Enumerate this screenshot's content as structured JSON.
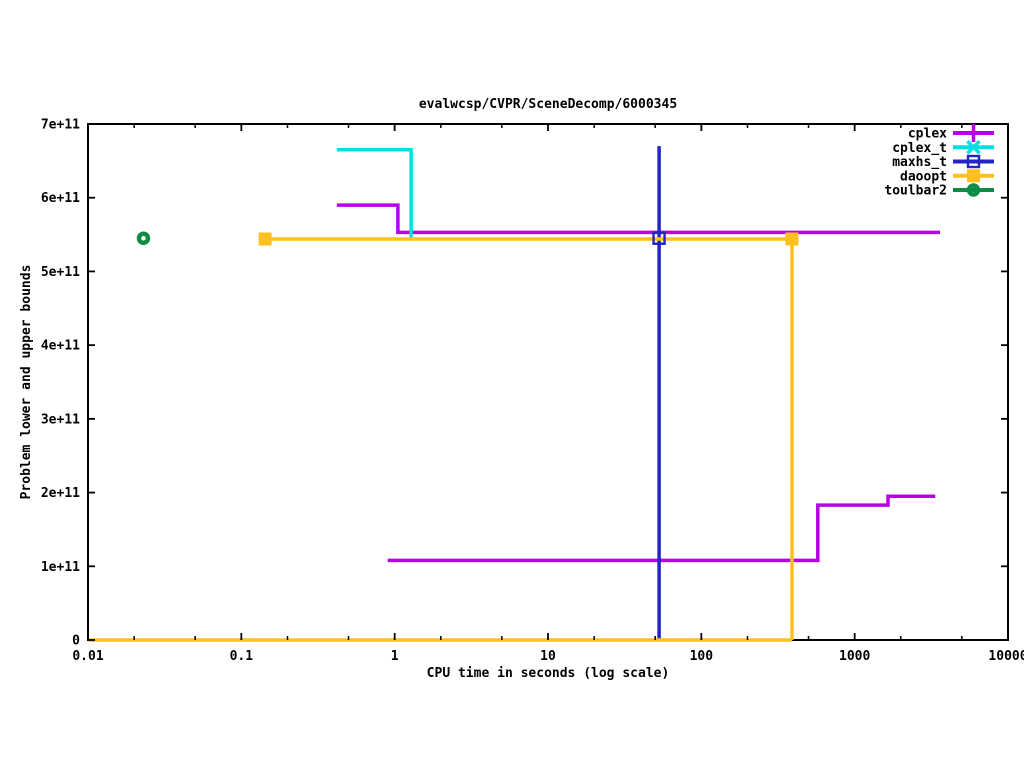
{
  "chart_data": {
    "type": "line",
    "title": "evalwcsp/CVPR/SceneDecomp/6000345",
    "xlabel": "CPU time in seconds (log scale)",
    "ylabel": "Problem lower and upper bounds",
    "x_scale": "log",
    "xlim": [
      0.01,
      10000
    ],
    "ylim": [
      0,
      700000000000.0
    ],
    "grid": false,
    "x_major_ticks": [
      {
        "value": 0.01,
        "label": "0.01"
      },
      {
        "value": 0.1,
        "label": "0.1"
      },
      {
        "value": 1,
        "label": "1"
      },
      {
        "value": 10,
        "label": "10"
      },
      {
        "value": 100,
        "label": "100"
      },
      {
        "value": 1000,
        "label": "1000"
      },
      {
        "value": 10000,
        "label": "10000"
      }
    ],
    "x_minor_multiples": [
      2,
      5
    ],
    "y_ticks": [
      {
        "value": 0,
        "label": "0"
      },
      {
        "value": 100000000000.0,
        "label": "1e+11"
      },
      {
        "value": 200000000000.0,
        "label": "2e+11"
      },
      {
        "value": 300000000000.0,
        "label": "3e+11"
      },
      {
        "value": 400000000000.0,
        "label": "4e+11"
      },
      {
        "value": 500000000000.0,
        "label": "5e+11"
      },
      {
        "value": 600000000000.0,
        "label": "6e+11"
      },
      {
        "value": 700000000000.0,
        "label": "7e+11"
      }
    ],
    "legend_position": "top-right",
    "legend": [
      {
        "label": "cplex",
        "color": "#b800e6",
        "marker": "plus"
      },
      {
        "label": "cplex_t",
        "color": "#00e0e0",
        "marker": "x"
      },
      {
        "label": "maxhs_t",
        "color": "#2424c4",
        "marker": "open-square"
      },
      {
        "label": "daoopt",
        "color": "#ffc020",
        "marker": "filled-square"
      },
      {
        "label": "toulbar2",
        "color": "#0e8b45",
        "marker": "open-circle"
      }
    ],
    "series": [
      {
        "name": "cplex-upper-bound",
        "legend": "cplex",
        "color": "#b800e6",
        "points": [
          [
            0.42,
            590000000000.0
          ],
          [
            1.05,
            590000000000.0
          ],
          [
            1.05,
            553000000000.0
          ],
          [
            3600,
            553000000000.0
          ]
        ]
      },
      {
        "name": "cplex-lower-bound",
        "legend": "cplex",
        "color": "#b800e6",
        "points": [
          [
            0.9,
            108000000000.0
          ],
          [
            575,
            108000000000.0
          ],
          [
            575,
            183000000000.0
          ],
          [
            1650,
            183000000000.0
          ],
          [
            1650,
            195000000000.0
          ],
          [
            3350,
            195000000000.0
          ]
        ]
      },
      {
        "name": "cplex_t-upper-bound",
        "legend": "cplex_t",
        "color": "#00e0e0",
        "points": [
          [
            0.42,
            665000000000.0
          ],
          [
            1.28,
            665000000000.0
          ],
          [
            1.28,
            543000000000.0
          ]
        ]
      },
      {
        "name": "maxhs_t-bounds",
        "legend": "maxhs_t",
        "color": "#2424c4",
        "points": [
          [
            53,
            670000000000.0
          ],
          [
            53,
            0
          ]
        ],
        "marker": "open-square",
        "markers": [
          [
            53,
            545000000000.0
          ]
        ]
      },
      {
        "name": "daoopt-upper-bound",
        "legend": "daoopt",
        "color": "#ffc020",
        "points": [
          [
            0.143,
            544000000000.0
          ],
          [
            390,
            544000000000.0
          ],
          [
            390,
            0
          ]
        ],
        "marker": "filled-square",
        "markers": [
          [
            0.143,
            544000000000.0
          ],
          [
            390,
            544000000000.0
          ]
        ]
      },
      {
        "name": "daoopt-lower-bound",
        "legend": "daoopt",
        "color": "#ffc020",
        "points": [
          [
            0.01,
            0
          ],
          [
            390,
            0
          ]
        ]
      },
      {
        "name": "toulbar2-bound",
        "legend": "toulbar2",
        "color": "#0e8b45",
        "points": [],
        "marker": "open-circle",
        "markers": [
          [
            0.023,
            545000000000.0
          ]
        ]
      }
    ]
  }
}
